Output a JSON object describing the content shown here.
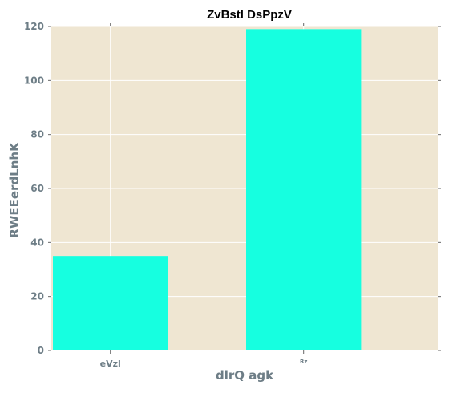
{
  "chart_data": {
    "type": "bar",
    "title": "ZvBstl DsPpzV",
    "xlabel": "dlrQ agk",
    "ylabel": "RWEEerdLnhK",
    "categories": [
      "eVzl",
      "Rz"
    ],
    "values": [
      35,
      119
    ],
    "ylim": [
      0,
      120
    ],
    "yticks": [
      0,
      20,
      40,
      60,
      80,
      100,
      120
    ],
    "grid": true,
    "legend": "none",
    "colors": {
      "bar": "#16ffe0",
      "plot_background": "#efe6d2",
      "grid": "#ffffff",
      "tick_text": "#6d7d86",
      "title_text": "#000000"
    }
  }
}
